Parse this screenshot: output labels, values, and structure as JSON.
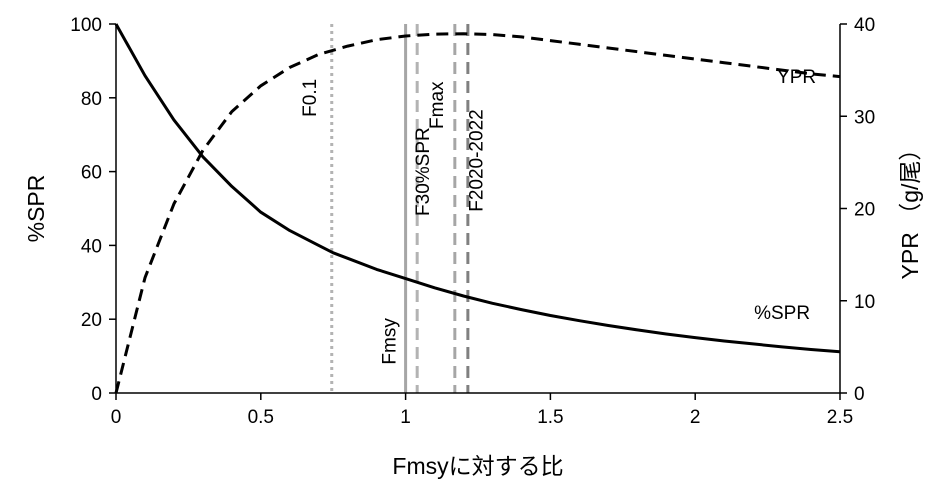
{
  "chart_data": {
    "type": "line",
    "title": "",
    "xlabel": "Fmsyに対する比",
    "ylabel_left": "%SPR",
    "ylabel_right": "YPR （g/尾）",
    "xlim": [
      0,
      2.5
    ],
    "ylim_left": [
      0,
      100
    ],
    "ylim_right": [
      0,
      40
    ],
    "x_ticks": [
      "0",
      "0.5",
      "1",
      "1.5",
      "2",
      "2.5"
    ],
    "y_left_ticks": [
      "0",
      "20",
      "40",
      "60",
      "80",
      "100"
    ],
    "y_right_ticks": [
      "0",
      "10",
      "20",
      "30",
      "40"
    ],
    "grid": false,
    "series": [
      {
        "name": "%SPR",
        "axis": "left",
        "style": "solid",
        "color": "#000000",
        "x": [
          0,
          0.1,
          0.2,
          0.3,
          0.4,
          0.5,
          0.6,
          0.7,
          0.75,
          0.8,
          0.9,
          1.0,
          1.1,
          1.2,
          1.3,
          1.4,
          1.5,
          1.6,
          1.7,
          1.8,
          1.9,
          2.0,
          2.1,
          2.2,
          2.3,
          2.4,
          2.5
        ],
        "y": [
          100,
          86,
          74,
          64,
          56,
          49,
          44,
          40,
          38,
          36.5,
          33.5,
          31,
          28.5,
          26.3,
          24.3,
          22.6,
          21,
          19.6,
          18.3,
          17.1,
          16,
          15,
          14.1,
          13.3,
          12.5,
          11.8,
          11.2
        ]
      },
      {
        "name": "YPR",
        "axis": "right",
        "style": "dashed",
        "color": "#000000",
        "x": [
          0,
          0.1,
          0.2,
          0.3,
          0.4,
          0.5,
          0.6,
          0.7,
          0.8,
          0.9,
          1.0,
          1.1,
          1.2,
          1.3,
          1.4,
          1.5,
          1.6,
          1.7,
          1.8,
          1.9,
          2.0,
          2.1,
          2.2,
          2.3,
          2.4,
          2.5
        ],
        "y": [
          0,
          12.5,
          20.5,
          26.3,
          30.5,
          33.3,
          35.3,
          36.7,
          37.6,
          38.3,
          38.7,
          38.9,
          38.95,
          38.85,
          38.6,
          38.2,
          37.8,
          37.4,
          37.0,
          36.6,
          36.2,
          35.8,
          35.4,
          35.0,
          34.6,
          34.3
        ]
      }
    ],
    "reference_lines": [
      {
        "label": "F0.1",
        "x": 0.745,
        "style": "dotted",
        "color": "#b3b3b3",
        "label_x": 0.69,
        "label_y": 80
      },
      {
        "label": "Fmsy",
        "x": 1.0,
        "style": "solid",
        "color": "#a6a6a6",
        "label_x": 0.965,
        "label_y": 14
      },
      {
        "label": "F30%SPR",
        "x": 1.04,
        "style": "dashed",
        "color": "#b3b3b3",
        "label_x": 1.08,
        "label_y": 60
      },
      {
        "label": "Fmax",
        "x": 1.17,
        "style": "dashed",
        "color": "#a6a6a6",
        "label_x": 1.13,
        "label_y": 78
      },
      {
        "label": "F2020-2022",
        "x": 1.215,
        "style": "dashed",
        "color": "#808080",
        "label_x": 1.265,
        "label_y": 63
      }
    ],
    "annotations": [
      {
        "text": "YPR",
        "x": 2.35,
        "y": 84
      },
      {
        "text": "%SPR",
        "x": 2.3,
        "y": 20
      }
    ]
  }
}
